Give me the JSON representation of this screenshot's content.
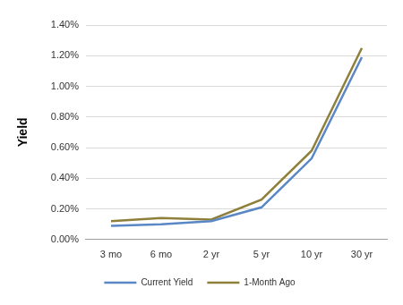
{
  "chart_data": {
    "type": "line",
    "y_label": "Yield",
    "categories": [
      "3 mo",
      "6 mo",
      "2 yr",
      "5 yr",
      "10 yr",
      "30 yr"
    ],
    "series": [
      {
        "name": "Current Yield",
        "color": "#5a87c5",
        "values": [
          0.09,
          0.1,
          0.12,
          0.21,
          0.53,
          1.19
        ]
      },
      {
        "name": "1-Month Ago",
        "color": "#8e7f3a",
        "values": [
          0.12,
          0.14,
          0.13,
          0.26,
          0.58,
          1.25
        ]
      }
    ],
    "ylim": [
      0,
      1.4
    ],
    "yticks": [
      {
        "value": 0,
        "label": "0.00%"
      },
      {
        "value": 0.2,
        "label": "0.20%"
      },
      {
        "value": 0.4,
        "label": "0.40%"
      },
      {
        "value": 0.6,
        "label": "0.60%"
      },
      {
        "value": 0.8,
        "label": "0.80%"
      },
      {
        "value": 1.0,
        "label": "1.00%"
      },
      {
        "value": 1.2,
        "label": "1.20%"
      },
      {
        "value": 1.4,
        "label": "1.40%"
      }
    ],
    "grid": true,
    "legend": "bottom"
  }
}
